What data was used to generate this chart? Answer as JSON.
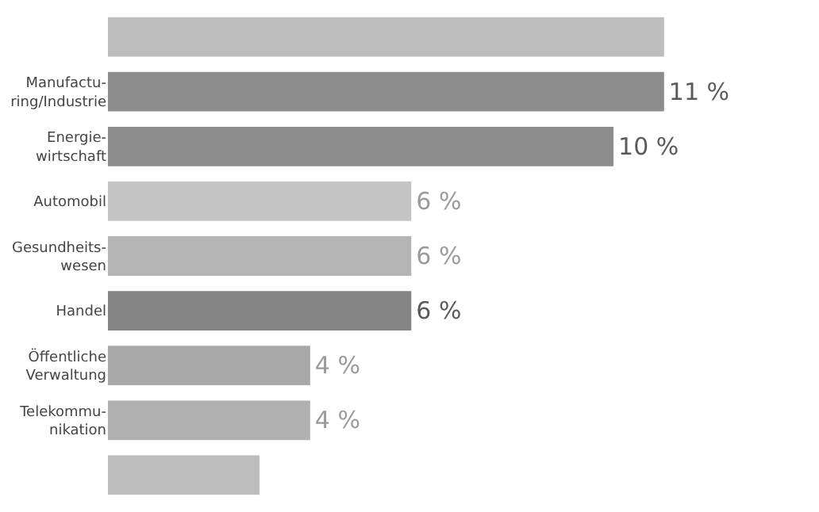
{
  "chart_data": {
    "type": "bar",
    "orientation": "horizontal",
    "categories": [
      null,
      "Manufactu-\nring/Industrie",
      "Energie-\nwirtschaft",
      "Automobil",
      "Gesundheits-\nwesen",
      "Handel",
      "Öffentliche\nVerwaltung",
      "Telekommu-\nnikation",
      null
    ],
    "values": [
      11,
      11,
      10,
      6,
      6,
      6,
      4,
      4,
      3
    ],
    "value_labels": [
      null,
      "11 %",
      "10 %",
      "6 %",
      "6 %",
      "6 %",
      "4 %",
      "4 %",
      null
    ],
    "colors": [
      "#bdbdbd",
      "#8c8c8c",
      "#8c8c8c",
      "#c4c4c4",
      "#b4b4b4",
      "#858585",
      "#a8a8a8",
      "#b0b0b0",
      "#bdbdbd"
    ],
    "legend": false
  }
}
